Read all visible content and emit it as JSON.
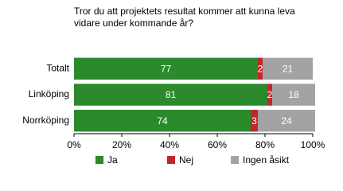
{
  "chart_data": {
    "type": "stacked-bar-horizontal",
    "title": "Tror du att projektets resultat kommer att kunna leva vidare under kommande år?",
    "categories": [
      "Totalt",
      "Linköping",
      "Norrköping"
    ],
    "series": [
      {
        "name": "Ja",
        "color": "#2b8a2b",
        "values": [
          77,
          81,
          74
        ]
      },
      {
        "name": "Nej",
        "color": "#c4262c",
        "values": [
          2,
          2,
          3
        ]
      },
      {
        "name": "Ingen åsikt",
        "color": "#a3a3a3",
        "values": [
          21,
          18,
          24
        ]
      }
    ],
    "xlim": [
      0,
      100
    ],
    "xticks": [
      {
        "value": 0,
        "label": "0%"
      },
      {
        "value": 20,
        "label": "20%"
      },
      {
        "value": 40,
        "label": "40%"
      },
      {
        "value": 60,
        "label": "60%"
      },
      {
        "value": 80,
        "label": "80%"
      },
      {
        "value": 100,
        "label": "100%"
      }
    ],
    "legend": "bottom"
  }
}
